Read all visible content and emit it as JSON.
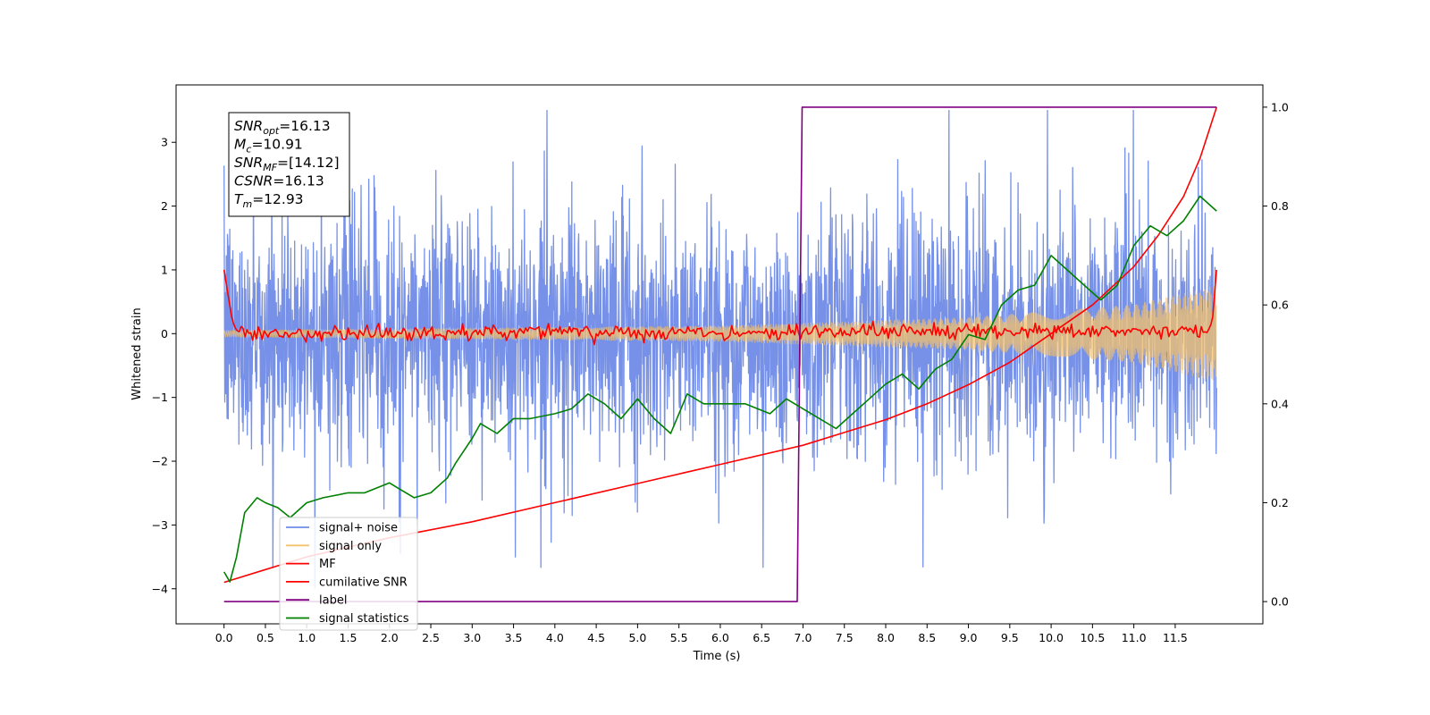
{
  "chart_data": {
    "type": "line",
    "title": "",
    "xlabel": "Time (s)",
    "ylabel": "Whitened strain",
    "xlim": [
      -0.58,
      12.56
    ],
    "ylim_left": [
      -4.55,
      3.9
    ],
    "ylim_right": [
      -0.045,
      1.045
    ],
    "xticks": [
      0.0,
      0.5,
      1.0,
      1.5,
      2.0,
      2.5,
      3.0,
      3.5,
      4.0,
      4.5,
      5.0,
      5.5,
      6.0,
      6.5,
      7.0,
      7.5,
      8.0,
      8.5,
      9.0,
      9.5,
      10.0,
      10.5,
      11.0,
      11.5
    ],
    "xtick_labels": [
      "0.0",
      "0.5",
      "1.0",
      "1.5",
      "2.0",
      "2.5",
      "3.0",
      "3.5",
      "4.0",
      "4.5",
      "5.0",
      "5.5",
      "6.0",
      "6.5",
      "7.0",
      "7.5",
      "8.0",
      "8.5",
      "9.0",
      "9.5",
      "10.0",
      "10.5",
      "11.0",
      "11.5"
    ],
    "yticks_left": [
      -4,
      -3,
      -2,
      -1,
      0,
      1,
      2,
      3
    ],
    "ytick_labels_left": [
      "−4",
      "−3",
      "−2",
      "−1",
      "0",
      "1",
      "2",
      "3"
    ],
    "yticks_right": [
      0.0,
      0.2,
      0.4,
      0.6,
      0.8,
      1.0
    ],
    "ytick_labels_right": [
      "0.0",
      "0.2",
      "0.4",
      "0.6",
      "0.8",
      "1.0"
    ],
    "grid": false,
    "legend_placement": "lower-left",
    "annotation": {
      "lines": [
        {
          "base": "SNR",
          "sub": "opt",
          "value": "=16.13"
        },
        {
          "base": "M",
          "sub": "c",
          "value": "=10.91"
        },
        {
          "base": "SNR",
          "sub": "MF",
          "value": "=[14.12]"
        },
        {
          "base": "CSNR",
          "sub": "",
          "value": "=16.13"
        },
        {
          "base": "T",
          "sub": "m",
          "value": "=12.93"
        }
      ]
    },
    "series": [
      {
        "name": "signal+ noise",
        "color": "#6f8be6",
        "axis": "left",
        "kind": "noise",
        "t_start": 0.0,
        "t_end": 12.0,
        "amplitude_sigma": 0.95,
        "amplitude_max": 3.5
      },
      {
        "name": "signal only",
        "color": "#f5c26b",
        "axis": "left",
        "kind": "chirp",
        "t_start": 0.0,
        "t_end": 12.0,
        "envelope": [
          [
            0.0,
            0.05
          ],
          [
            6.0,
            0.12
          ],
          [
            9.0,
            0.25
          ],
          [
            11.0,
            0.45
          ],
          [
            12.0,
            0.75
          ]
        ]
      },
      {
        "name": "MF",
        "color": "#ff0000",
        "axis": "left",
        "kind": "mf",
        "t_start": 0.0,
        "t_end": 12.0,
        "x": [
          0.0,
          0.05,
          0.1,
          0.15,
          0.25,
          11.9,
          11.95,
          12.0
        ],
        "y": [
          1.0,
          0.6,
          0.2,
          0.05,
          0.0,
          0.05,
          0.2,
          1.0
        ],
        "jitter": 0.06
      },
      {
        "name": "cumilative SNR",
        "color": "#ff0000",
        "axis": "left",
        "x": [
          0.0,
          0.5,
          1.0,
          2.0,
          3.0,
          4.0,
          5.0,
          6.0,
          7.0,
          7.5,
          8.0,
          8.5,
          9.0,
          9.5,
          10.0,
          10.5,
          11.0,
          11.3,
          11.6,
          11.8,
          12.0
        ],
        "y": [
          -3.9,
          -3.7,
          -3.5,
          -3.2,
          -2.95,
          -2.65,
          -2.35,
          -2.05,
          -1.75,
          -1.55,
          -1.35,
          -1.1,
          -0.8,
          -0.45,
          0.0,
          0.45,
          1.05,
          1.55,
          2.15,
          2.75,
          3.55
        ]
      },
      {
        "name": "label",
        "color": "#800080",
        "axis": "right",
        "x": [
          0.0,
          6.93,
          6.99,
          12.0
        ],
        "y": [
          0.0,
          0.0,
          1.0,
          1.0
        ]
      },
      {
        "name": "signal statistics",
        "color": "#008000",
        "axis": "right",
        "x": [
          0.0,
          0.07,
          0.15,
          0.25,
          0.4,
          0.5,
          0.65,
          0.8,
          1.0,
          1.2,
          1.5,
          1.7,
          2.0,
          2.1,
          2.3,
          2.5,
          2.7,
          2.8,
          3.0,
          3.1,
          3.3,
          3.5,
          3.7,
          4.0,
          4.2,
          4.4,
          4.6,
          4.8,
          5.0,
          5.2,
          5.4,
          5.6,
          5.8,
          6.0,
          6.3,
          6.6,
          6.8,
          7.0,
          7.2,
          7.4,
          7.6,
          7.8,
          8.0,
          8.2,
          8.4,
          8.6,
          8.8,
          9.0,
          9.2,
          9.4,
          9.6,
          9.8,
          10.0,
          10.2,
          10.4,
          10.6,
          10.8,
          11.0,
          11.2,
          11.4,
          11.6,
          11.8,
          12.0
        ],
        "y": [
          0.06,
          0.04,
          0.09,
          0.18,
          0.21,
          0.2,
          0.19,
          0.17,
          0.2,
          0.21,
          0.22,
          0.22,
          0.24,
          0.23,
          0.21,
          0.22,
          0.25,
          0.28,
          0.33,
          0.36,
          0.34,
          0.37,
          0.37,
          0.38,
          0.39,
          0.42,
          0.4,
          0.37,
          0.41,
          0.37,
          0.34,
          0.42,
          0.4,
          0.4,
          0.4,
          0.38,
          0.41,
          0.39,
          0.37,
          0.35,
          0.38,
          0.41,
          0.44,
          0.46,
          0.43,
          0.47,
          0.49,
          0.54,
          0.53,
          0.6,
          0.63,
          0.64,
          0.7,
          0.67,
          0.64,
          0.61,
          0.64,
          0.72,
          0.76,
          0.74,
          0.77,
          0.82,
          0.79
        ]
      }
    ]
  }
}
